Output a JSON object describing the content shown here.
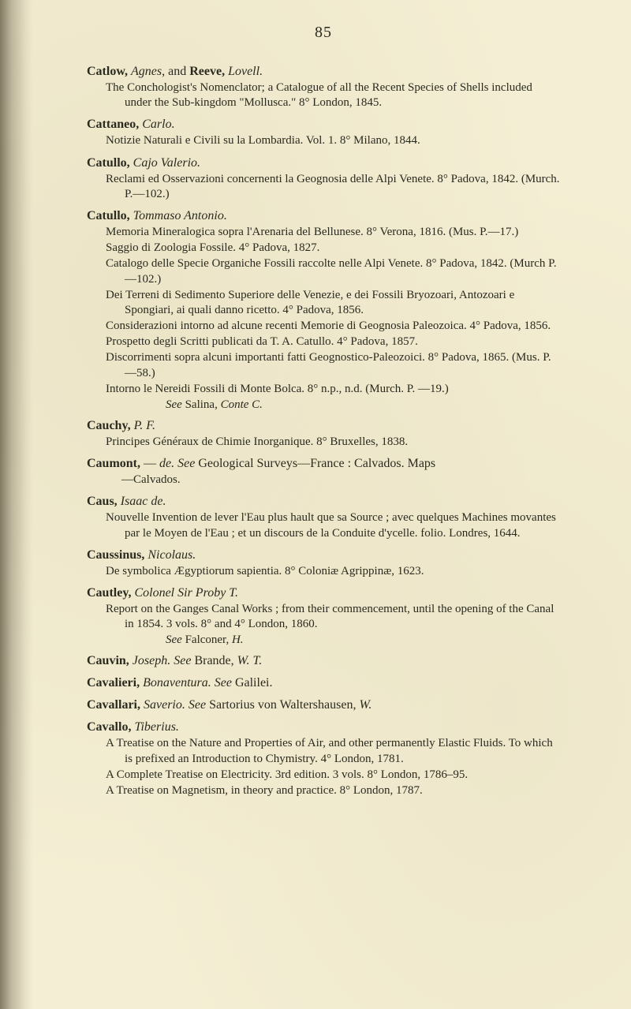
{
  "page_number": "85",
  "entries": [
    {
      "head": [
        {
          "t": "Catlow, ",
          "b": true
        },
        {
          "t": "Agnes",
          "i": true
        },
        {
          "t": ", and "
        },
        {
          "t": "Reeve, ",
          "b": true
        },
        {
          "t": "Lovell.",
          "i": true
        }
      ],
      "subs": [
        {
          "lvl": 1,
          "runs": [
            {
              "t": "The Conchologist's Nomenclator; a Catalogue of all the Recent Species of Shells included under the Sub-kingdom \"Mollusca.\" 8°  London, 1845."
            }
          ]
        }
      ]
    },
    {
      "head": [
        {
          "t": "Cattaneo, ",
          "b": true
        },
        {
          "t": "Carlo.",
          "i": true
        }
      ],
      "subs": [
        {
          "lvl": 1,
          "runs": [
            {
              "t": "Notizie Naturali e Civili su la Lombardia.  Vol. 1.  8°  Milano, 1844."
            }
          ]
        }
      ]
    },
    {
      "head": [
        {
          "t": "Catullo, ",
          "b": true
        },
        {
          "t": "Cajo Valerio.",
          "i": true
        }
      ],
      "subs": [
        {
          "lvl": 1,
          "runs": [
            {
              "t": "Reclami ed Osservazioni concernenti la Geognosia delle Alpi Venete. 8°  Padova, 1842.  (Murch. P.—102.)"
            }
          ]
        }
      ]
    },
    {
      "head": [
        {
          "t": "Catullo, ",
          "b": true
        },
        {
          "t": "Tommaso Antonio.",
          "i": true
        }
      ],
      "subs": [
        {
          "lvl": 1,
          "runs": [
            {
              "t": "Memoria Mineralogica sopra l'Arenaria del Bellunese.  8°  Verona, 1816.  (Mus. P.—17.)"
            }
          ]
        },
        {
          "lvl": 1,
          "runs": [
            {
              "t": "Saggio di Zoologia Fossile.  4°  Padova, 1827."
            }
          ]
        },
        {
          "lvl": 1,
          "runs": [
            {
              "t": "Catalogo delle Specie Organiche Fossili raccolte nelle Alpi Venete.  8° Padova, 1842.  (Murch P.—102.)"
            }
          ]
        },
        {
          "lvl": 1,
          "runs": [
            {
              "t": "Dei Terreni di Sedimento Superiore delle Venezie, e dei Fossili Bryozoari, Antozoari e Spongiari, ai quali danno ricetto.  4° Padova, 1856."
            }
          ]
        },
        {
          "lvl": 1,
          "runs": [
            {
              "t": "Considerazioni intorno ad alcune recenti Memorie di Geognosia Paleozoica.  4°  Padova, 1856."
            }
          ]
        },
        {
          "lvl": 1,
          "runs": [
            {
              "t": "Prospetto degli Scritti publicati da T. A. Catullo.  4°  Padova, 1857."
            }
          ]
        },
        {
          "lvl": 1,
          "runs": [
            {
              "t": "Discorrimenti sopra alcuni importanti fatti Geognostico-Paleozoici. 8°  Padova, 1865.  (Mus. P.—58.)"
            }
          ]
        },
        {
          "lvl": 1,
          "runs": [
            {
              "t": "Intorno le Nereidi Fossili di Monte Bolca.  8°  n.p., n.d.  (Murch. P. —19.)"
            }
          ]
        },
        {
          "see": true,
          "runs": [
            {
              "t": "See",
              "i": true
            },
            {
              "t": " Salina, "
            },
            {
              "t": "Conte C.",
              "i": true
            }
          ]
        }
      ]
    },
    {
      "head": [
        {
          "t": "Cauchy, ",
          "b": true
        },
        {
          "t": "P. F.",
          "i": true
        }
      ],
      "subs": [
        {
          "lvl": 1,
          "runs": [
            {
              "t": "Principes Généraux de Chimie Inorganique.  8°  Bruxelles, 1838."
            }
          ]
        }
      ]
    },
    {
      "head": [
        {
          "t": "Caumont, ",
          "b": true
        },
        {
          "t": "— "
        },
        {
          "t": "de.",
          "i": true
        },
        {
          "t": "  "
        },
        {
          "t": "See",
          "i": true
        },
        {
          "t": " Geological Surveys—France : Calvados.  Maps"
        }
      ],
      "subs": [
        {
          "lvl": 2,
          "runs": [
            {
              "t": "—Calvados."
            }
          ]
        }
      ]
    },
    {
      "head": [
        {
          "t": "Caus, ",
          "b": true
        },
        {
          "t": "Isaac de.",
          "i": true
        }
      ],
      "subs": [
        {
          "lvl": 1,
          "runs": [
            {
              "t": "Nouvelle Invention de lever l'Eau plus hault que sa Source ; avec quelques Machines movantes par le Moyen de l'Eau ; et un discours de la Conduite d'ycelle.  folio.  Londres, 1644."
            }
          ]
        }
      ]
    },
    {
      "head": [
        {
          "t": "Caussinus, ",
          "b": true
        },
        {
          "t": "Nicolaus.",
          "i": true
        }
      ],
      "subs": [
        {
          "lvl": 1,
          "runs": [
            {
              "t": "De symbolica Ægyptiorum sapientia.  8°  Coloniæ Agrippinæ, 1623."
            }
          ]
        }
      ]
    },
    {
      "head": [
        {
          "t": "Cautley, ",
          "b": true
        },
        {
          "t": "Colonel Sir Proby T.",
          "i": true
        }
      ],
      "subs": [
        {
          "lvl": 1,
          "runs": [
            {
              "t": "Report on the Ganges Canal Works ; from their commencement, until the opening of the Canal in 1854.  3 vols.  8° and 4° London, 1860."
            }
          ]
        },
        {
          "see": true,
          "runs": [
            {
              "t": "See",
              "i": true
            },
            {
              "t": " Falconer, "
            },
            {
              "t": "H.",
              "i": true
            }
          ]
        }
      ]
    },
    {
      "head": [
        {
          "t": "Cauvin, ",
          "b": true
        },
        {
          "t": "Joseph.",
          "i": true
        },
        {
          "t": "  "
        },
        {
          "t": "See",
          "i": true
        },
        {
          "t": " Brande, "
        },
        {
          "t": "W. T.",
          "i": true
        }
      ],
      "subs": []
    },
    {
      "head": [
        {
          "t": "Cavalieri, ",
          "b": true
        },
        {
          "t": "Bonaventura.",
          "i": true
        },
        {
          "t": "  "
        },
        {
          "t": "See",
          "i": true
        },
        {
          "t": " Galilei."
        }
      ],
      "subs": []
    },
    {
      "head": [
        {
          "t": "Cavallari, ",
          "b": true
        },
        {
          "t": "Saverio.",
          "i": true
        },
        {
          "t": "  "
        },
        {
          "t": "See",
          "i": true
        },
        {
          "t": " Sartorius von Waltershausen, "
        },
        {
          "t": "W.",
          "i": true
        }
      ],
      "subs": []
    },
    {
      "head": [
        {
          "t": "Cavallo, ",
          "b": true
        },
        {
          "t": "Tiberius.",
          "i": true
        }
      ],
      "subs": [
        {
          "lvl": 1,
          "runs": [
            {
              "t": "A Treatise on the Nature and Properties of Air, and other permanently Elastic Fluids.   To which is prefixed an Introduction to Chymistry.  4°  London, 1781."
            }
          ]
        },
        {
          "lvl": 1,
          "runs": [
            {
              "t": "A Complete Treatise on Electricity.  3rd edition.  3 vols.  8° London, 1786–95."
            }
          ]
        },
        {
          "lvl": 1,
          "runs": [
            {
              "t": "A Treatise on Magnetism, in theory and practice.  8°  London, 1787."
            }
          ]
        }
      ]
    }
  ]
}
